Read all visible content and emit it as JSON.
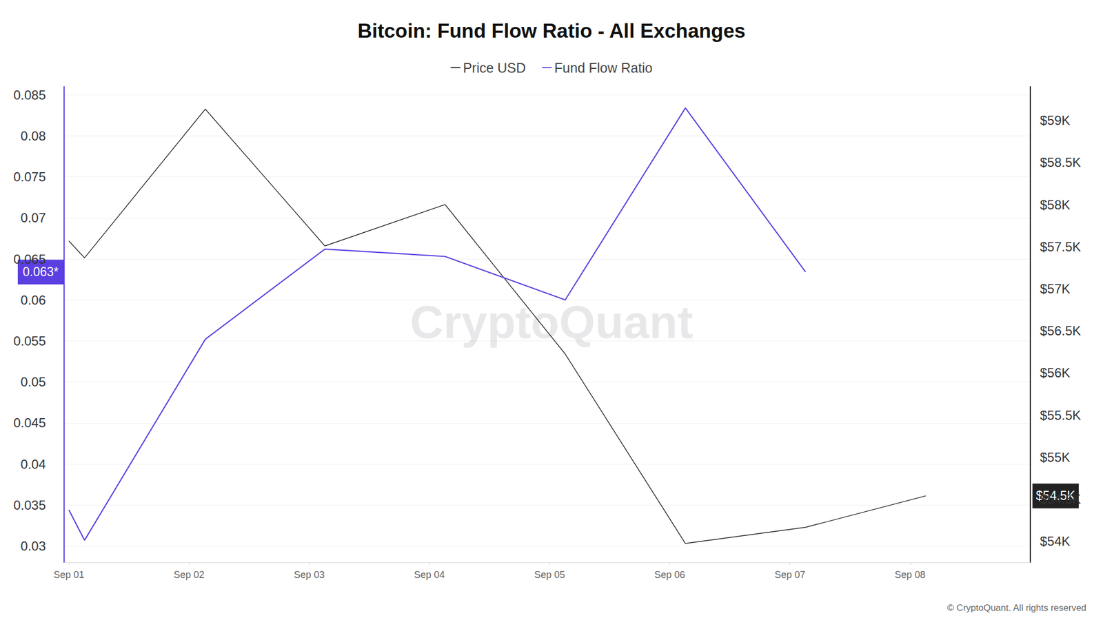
{
  "chart_data": {
    "type": "line",
    "title": "Bitcoin: Fund Flow Ratio - All Exchanges",
    "x": [
      1,
      1.13,
      2.135,
      3.13,
      4.13,
      5.13,
      6.13,
      7.13,
      8.13
    ],
    "xlim": [
      0.96,
      9.0
    ],
    "xticks": [
      {
        "value": 1,
        "label": "Sep 01"
      },
      {
        "value": 2,
        "label": "Sep 02"
      },
      {
        "value": 3,
        "label": "Sep 03"
      },
      {
        "value": 4,
        "label": "Sep 04"
      },
      {
        "value": 5,
        "label": "Sep 05"
      },
      {
        "value": 6,
        "label": "Sep 06"
      },
      {
        "value": 7,
        "label": "Sep 07"
      },
      {
        "value": 8,
        "label": "Sep 08"
      }
    ],
    "ylim": [
      0.028,
      0.086
    ],
    "yticks": [
      0.03,
      0.035,
      0.04,
      0.045,
      0.05,
      0.055,
      0.06,
      0.065,
      0.07,
      0.075,
      0.08,
      0.085
    ],
    "y2lim": [
      53750,
      59400
    ],
    "y2ticks": [
      {
        "value": 54000,
        "label": "$54K"
      },
      {
        "value": 54500,
        "label": "$54.5K"
      },
      {
        "value": 55000,
        "label": "$55K"
      },
      {
        "value": 55500,
        "label": "$55.5K"
      },
      {
        "value": 56000,
        "label": "$56K"
      },
      {
        "value": 56500,
        "label": "$56.5K"
      },
      {
        "value": 57000,
        "label": "$57K"
      },
      {
        "value": 57500,
        "label": "$57.5K"
      },
      {
        "value": 58000,
        "label": "$58K"
      },
      {
        "value": 58500,
        "label": "$58.5K"
      },
      {
        "value": 59000,
        "label": "$59K"
      }
    ],
    "series": [
      {
        "name": "Price USD",
        "color": "#222222",
        "axis": "y2",
        "values": [
          57567,
          57367,
          59133,
          57508,
          58000,
          56225,
          53975,
          54167,
          54540
        ],
        "end_label": "$54.5K"
      },
      {
        "name": "Fund Flow Ratio",
        "color": "#5b3fe0",
        "values": [
          0.0344,
          0.0307,
          0.0552,
          0.0662,
          0.0653,
          0.06,
          0.0834,
          0.0634,
          null
        ],
        "end_label": "0.063*"
      }
    ],
    "grid": true,
    "legend": "top",
    "watermark": "CryptoQuant",
    "credit": "© CryptoQuant. All rights reserved"
  }
}
